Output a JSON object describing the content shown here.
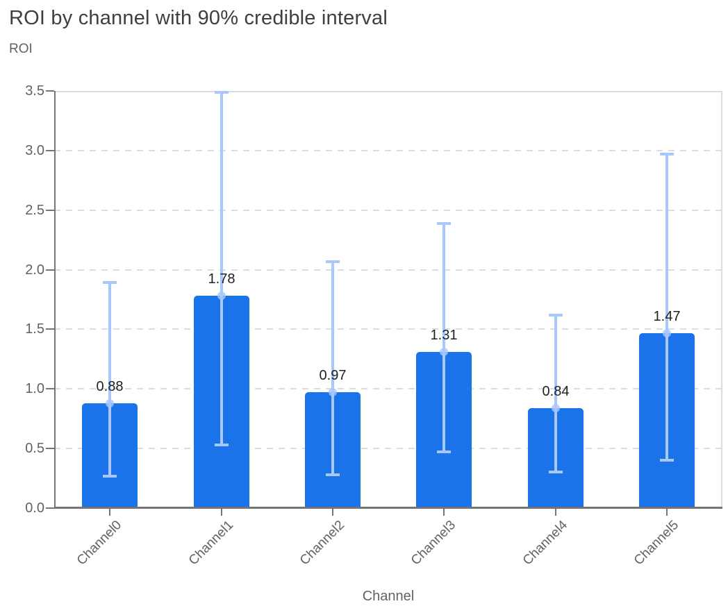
{
  "chart_data": {
    "type": "bar",
    "title": "ROI by channel with 90% credible interval",
    "xlabel": "Channel",
    "ylabel": "ROI",
    "categories": [
      "Channel0",
      "Channel1",
      "Channel2",
      "Channel3",
      "Channel4",
      "Channel5"
    ],
    "values": [
      0.88,
      1.78,
      0.97,
      1.31,
      0.84,
      1.47
    ],
    "value_labels": [
      "0.88",
      "1.78",
      "0.97",
      "1.31",
      "0.84",
      "1.47"
    ],
    "error_bars": {
      "label": "90% credible interval",
      "lower": [
        0.27,
        0.53,
        0.28,
        0.47,
        0.3,
        0.4
      ],
      "upper": [
        1.89,
        3.49,
        2.07,
        2.39,
        1.62,
        2.97
      ]
    },
    "ylim": [
      0,
      3.5
    ],
    "yticks": [
      0,
      0.5,
      1,
      1.5,
      2,
      2.5,
      3,
      3.5
    ],
    "ytick_labels": [
      "0.0",
      "0.5",
      "1.0",
      "1.5",
      "2.0",
      "2.5",
      "3.0",
      "3.5"
    ],
    "grid": "horizontal-dashed",
    "legend": "none"
  },
  "colors": {
    "bar_fill": "#1a73e8",
    "error_bar": "#a8c7fa",
    "ci_dot": "#a8c7fa",
    "axis_line": "#757575",
    "gridline": "#dadce0",
    "plot_border": "#dadce0",
    "title_text": "#3c4043",
    "tick_text": "#5f6368",
    "value_label_text": "#202124"
  }
}
